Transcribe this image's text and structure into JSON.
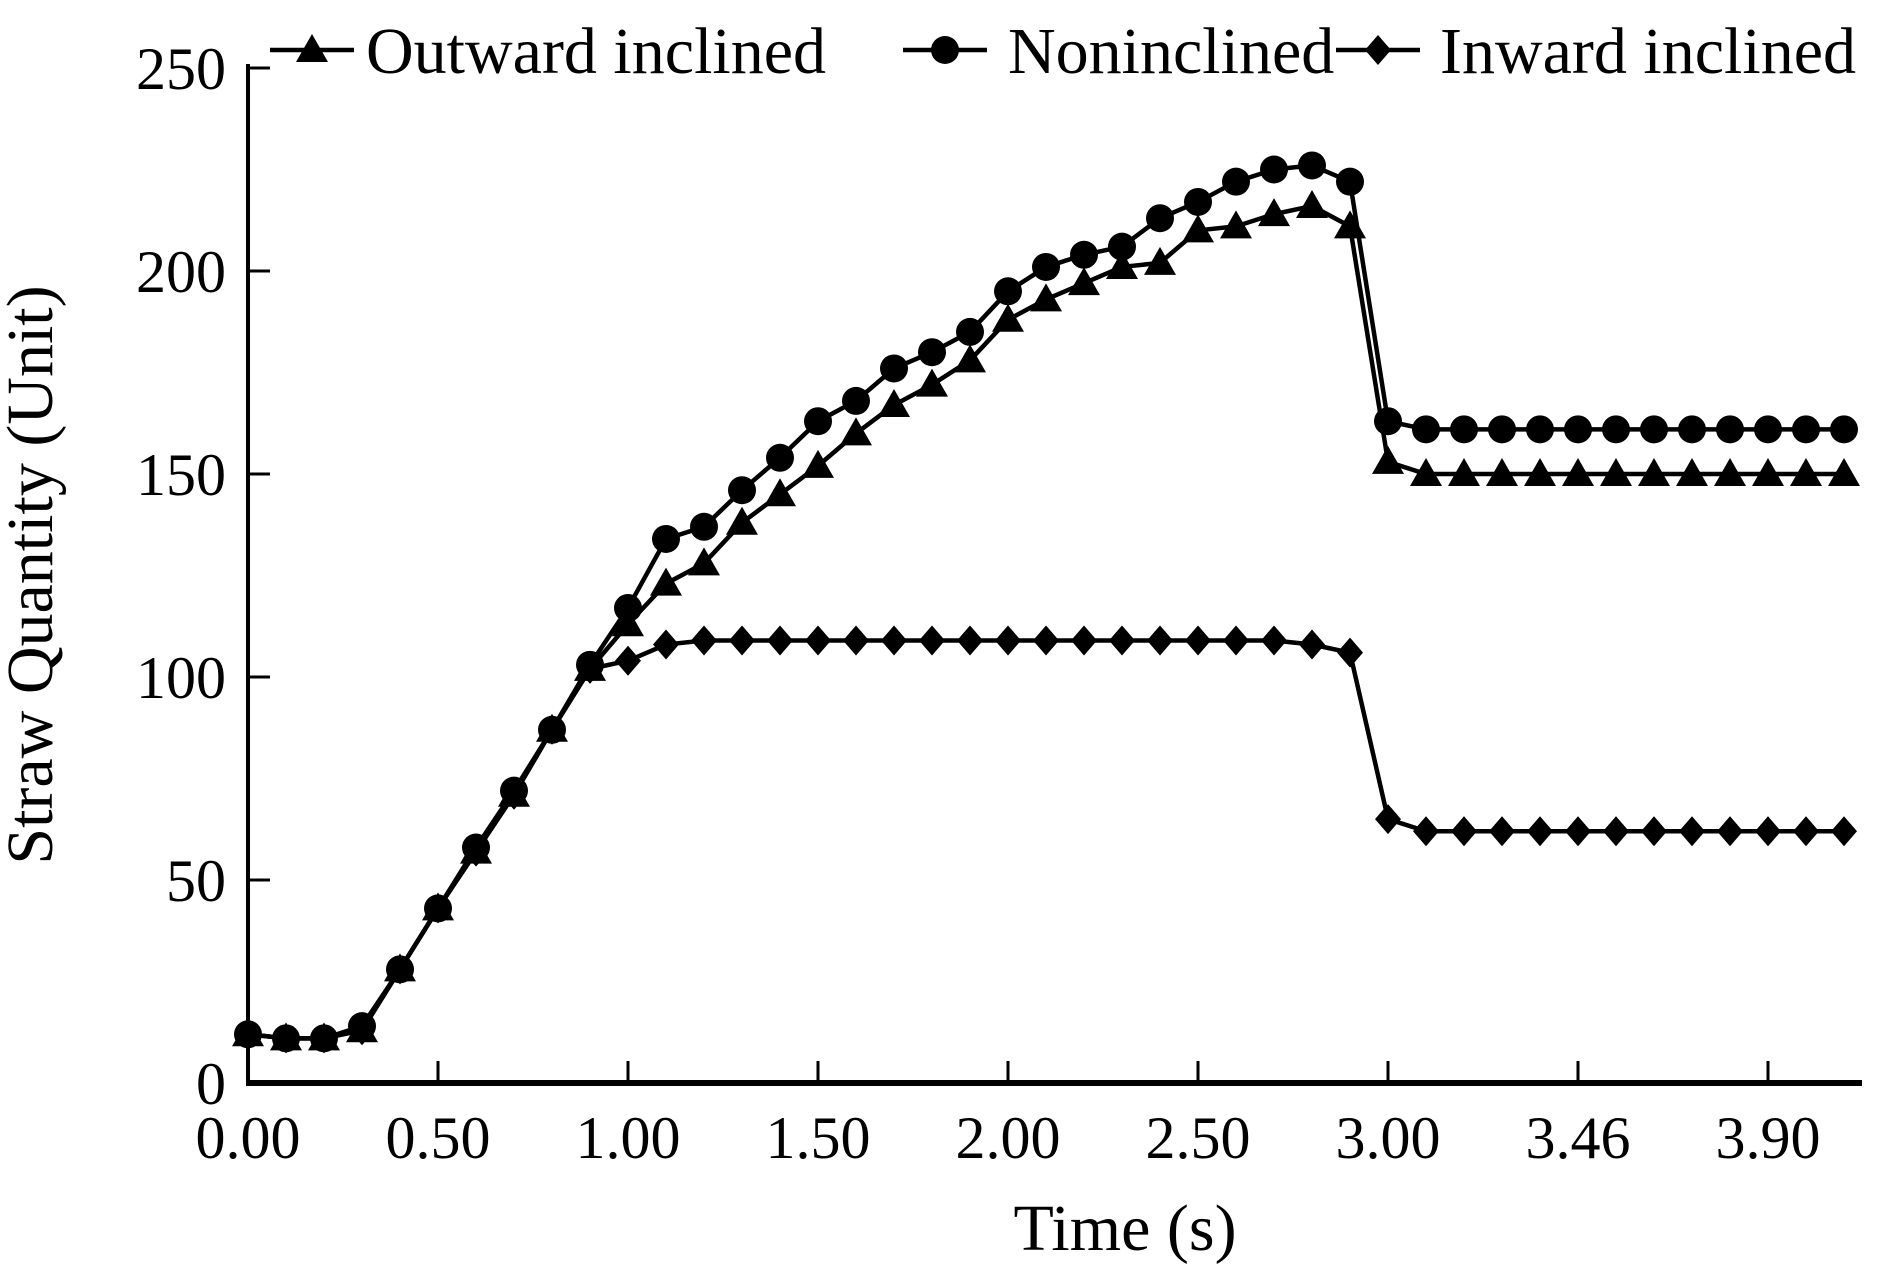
{
  "figure": {
    "background_color": "#ffffff",
    "ink_color": "#000000"
  },
  "legend": {
    "position": "top",
    "items": [
      {
        "label": "Outward inclined",
        "marker": "triangle-icon"
      },
      {
        "label": "Noninclined",
        "marker": "circle-icon"
      },
      {
        "label": "Inward inclined",
        "marker": "diamond-icon"
      }
    ]
  },
  "axes": {
    "x": {
      "title": "Time (s)",
      "tick_labels": [
        "0.00",
        "0.50",
        "1.00",
        "1.50",
        "2.00",
        "2.50",
        "3.00",
        "3.46",
        "3.90"
      ],
      "tick_point_indices": [
        0,
        5,
        10,
        15,
        20,
        25,
        30,
        35,
        40
      ]
    },
    "y": {
      "title": "Straw Quantity (Unit)",
      "tick_labels": [
        "0",
        "50",
        "100",
        "150",
        "200",
        "250"
      ],
      "tick_values": [
        0,
        50,
        100,
        150,
        200,
        250
      ]
    }
  },
  "chart_data": {
    "type": "line",
    "title": "",
    "xlabel": "Time (s)",
    "ylabel": "Straw Quantity (Unit)",
    "ylim": [
      0,
      250
    ],
    "grid": false,
    "legend_position": "top",
    "line_color": "#000000",
    "x_tick_labels": [
      "0.00",
      "0.50",
      "1.00",
      "1.50",
      "2.00",
      "2.50",
      "3.00",
      "3.46",
      "3.90"
    ],
    "categories_time_s": [
      0.0,
      0.1,
      0.2,
      0.3,
      0.4,
      0.5,
      0.6,
      0.7,
      0.8,
      0.9,
      1.0,
      1.1,
      1.2,
      1.3,
      1.4,
      1.5,
      1.6,
      1.7,
      1.8,
      1.9,
      2.0,
      2.1,
      2.2,
      2.3,
      2.4,
      2.5,
      2.6,
      2.7,
      2.8,
      2.9,
      3.0,
      3.09,
      3.18,
      3.28,
      3.37,
      3.46,
      3.55,
      3.64,
      3.72,
      3.81,
      3.9,
      3.99,
      4.08
    ],
    "series": [
      {
        "name": "Outward inclined",
        "marker": "triangle",
        "values": [
          12,
          11,
          11,
          13,
          28,
          43,
          57,
          71,
          87,
          102,
          113,
          123,
          128,
          138,
          145,
          152,
          160,
          167,
          172,
          178,
          188,
          193,
          197,
          201,
          202,
          210,
          211,
          214,
          216,
          211,
          153,
          150,
          150,
          150,
          150,
          150,
          150,
          150,
          150,
          150,
          150,
          150,
          150
        ]
      },
      {
        "name": "Noninclined",
        "marker": "circle",
        "values": [
          12,
          11,
          11,
          14,
          28,
          43,
          58,
          72,
          87,
          103,
          117,
          134,
          137,
          146,
          154,
          163,
          168,
          176,
          180,
          185,
          195,
          201,
          204,
          206,
          213,
          217,
          222,
          225,
          226,
          222,
          163,
          161,
          161,
          161,
          161,
          161,
          161,
          161,
          161,
          161,
          161,
          161,
          161
        ]
      },
      {
        "name": "Inward inclined",
        "marker": "diamond",
        "values": [
          12,
          11,
          11,
          13,
          28,
          43,
          57,
          71,
          87,
          102,
          104,
          108,
          109,
          109,
          109,
          109,
          109,
          109,
          109,
          109,
          109,
          109,
          109,
          109,
          109,
          109,
          109,
          109,
          108,
          106,
          65,
          62,
          62,
          62,
          62,
          62,
          62,
          62,
          62,
          62,
          62,
          62,
          62
        ]
      }
    ]
  }
}
